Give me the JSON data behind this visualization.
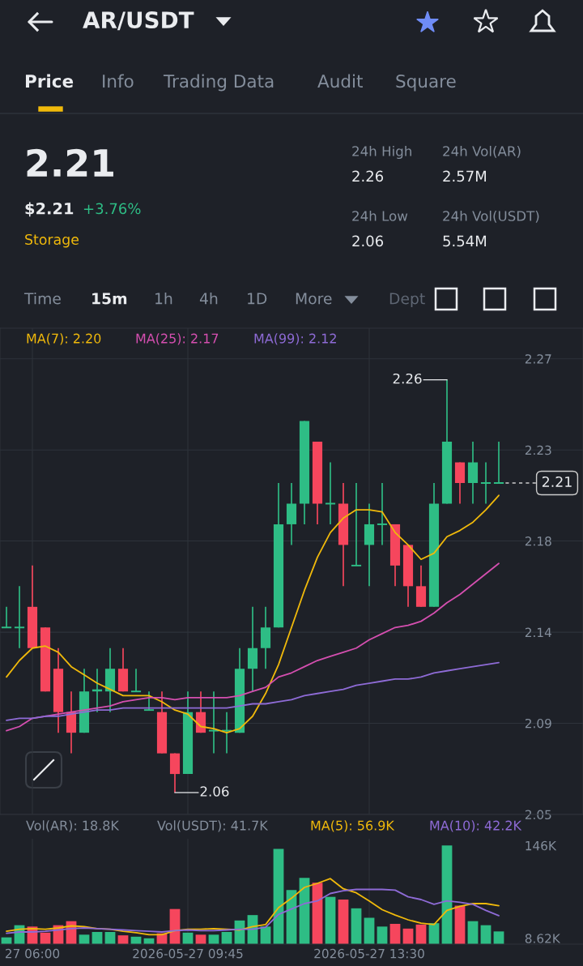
{
  "chart_data": [
    {
      "type": "other",
      "title": "AR/USDT",
      "annotations": [
        "Price",
        "Info",
        "Trading Data",
        "Audit",
        "Square",
        "2.21",
        "$2.21",
        "+3.76%",
        "Storage",
        "24h High",
        "2.26",
        "24h Vol(AR)",
        "2.57M",
        "24h Low",
        "2.06",
        "24h Vol(USDT)",
        "5.54M",
        "Time",
        "15m",
        "1h",
        "4h",
        "1D",
        "More",
        "Dept"
      ]
    },
    {
      "type": "candlestick",
      "categories": [
        null,
        null,
        null,
        null,
        null,
        null,
        null,
        null,
        null,
        null,
        null,
        null,
        null,
        null,
        null,
        null,
        null,
        null,
        null,
        null,
        null,
        null,
        null,
        null,
        null,
        null,
        null,
        null,
        null,
        null,
        null,
        null,
        null,
        null,
        null,
        null,
        null,
        null,
        null
      ],
      "ohlc": [
        [
          2.14,
          2.15,
          2.14,
          2.14
        ],
        [
          2.14,
          2.16,
          2.13,
          2.14
        ],
        [
          2.15,
          2.17,
          2.13,
          2.13
        ],
        [
          2.14,
          2.14,
          2.109,
          2.109
        ],
        [
          2.12,
          2.13,
          2.089,
          2.099
        ],
        [
          2.099,
          2.109,
          2.079,
          2.089
        ],
        [
          2.089,
          2.12,
          2.089,
          2.109
        ],
        [
          2.109,
          2.12,
          2.099,
          2.11
        ],
        [
          2.109,
          2.13,
          2.099,
          2.12
        ],
        [
          2.12,
          2.13,
          2.109,
          2.109
        ],
        [
          2.109,
          2.12,
          2.109,
          2.109
        ],
        [
          2.1,
          2.109,
          2.1,
          2.1
        ],
        [
          2.099,
          2.109,
          2.079,
          2.079
        ],
        [
          2.079,
          2.079,
          2.06,
          2.069
        ],
        [
          2.069,
          2.109,
          2.069,
          2.099
        ],
        [
          2.099,
          2.109,
          2.089,
          2.089
        ],
        [
          2.09,
          2.109,
          2.079,
          2.09
        ],
        [
          2.09,
          2.099,
          2.079,
          2.09
        ],
        [
          2.089,
          2.13,
          2.089,
          2.12
        ],
        [
          2.12,
          2.15,
          2.109,
          2.13
        ],
        [
          2.13,
          2.15,
          2.12,
          2.14
        ],
        [
          2.14,
          2.21,
          2.14,
          2.19
        ],
        [
          2.19,
          2.21,
          2.18,
          2.2
        ],
        [
          2.2,
          2.24,
          2.19,
          2.24
        ],
        [
          2.23,
          2.23,
          2.19,
          2.2
        ],
        [
          2.2,
          2.22,
          2.19,
          2.2
        ],
        [
          2.2,
          2.21,
          2.16,
          2.18
        ],
        [
          2.17,
          2.21,
          2.17,
          2.17
        ],
        [
          2.18,
          2.2,
          2.16,
          2.19
        ],
        [
          2.19,
          2.21,
          2.18,
          2.19
        ],
        [
          2.19,
          2.19,
          2.16,
          2.17
        ],
        [
          2.18,
          2.18,
          2.15,
          2.16
        ],
        [
          2.16,
          2.17,
          2.15,
          2.15
        ],
        [
          2.15,
          2.21,
          2.15,
          2.2
        ],
        [
          2.2,
          2.26,
          2.2,
          2.23
        ],
        [
          2.22,
          2.22,
          2.2,
          2.21
        ],
        [
          2.21,
          2.23,
          2.2,
          2.22
        ],
        [
          2.21,
          2.22,
          2.2,
          2.21
        ],
        [
          2.21,
          2.23,
          2.21,
          2.21
        ]
      ],
      "colors": [
        "#2ebd85",
        "#2ebd85",
        "#f6465d",
        "#f6465d",
        "#f6465d",
        "#f6465d",
        "#2ebd85",
        "#2ebd85",
        "#2ebd85",
        "#f6465d",
        "#2ebd85",
        "#2ebd85",
        "#f6465d",
        "#f6465d",
        "#2ebd85",
        "#f6465d",
        "#2ebd85",
        "#2ebd85",
        "#2ebd85",
        "#2ebd85",
        "#2ebd85",
        "#2ebd85",
        "#2ebd85",
        "#2ebd85",
        "#f6465d",
        "#2ebd85",
        "#f6465d",
        "#2ebd85",
        "#2ebd85",
        "#2ebd85",
        "#f6465d",
        "#f6465d",
        "#f6465d",
        "#2ebd85",
        "#2ebd85",
        "#f6465d",
        "#2ebd85",
        "#2ebd85",
        "#2ebd85"
      ],
      "series": [
        {
          "name": "MA(7): 2.20",
          "type": "line",
          "color": "#f0b90b",
          "values": [
            2.116,
            2.124,
            2.13,
            2.131,
            2.128,
            2.121,
            2.117,
            2.113,
            2.11,
            2.107,
            2.107,
            2.107,
            2.104,
            2.1,
            2.098,
            2.092,
            2.091,
            2.089,
            2.091,
            2.097,
            2.108,
            2.122,
            2.14,
            2.158,
            2.174,
            2.186,
            2.193,
            2.197,
            2.197,
            2.196,
            2.186,
            2.18,
            2.173,
            2.176,
            2.184,
            2.187,
            2.191,
            2.197,
            2.204
          ]
        },
        {
          "name": "MA(25): 2.17",
          "type": "line",
          "color": "#d54fb0",
          "values": [
            2.09,
            2.092,
            2.096,
            2.097,
            2.098,
            2.099,
            2.1,
            2.101,
            2.102,
            2.104,
            2.105,
            2.106,
            2.106,
            2.105,
            2.106,
            2.106,
            2.106,
            2.106,
            2.107,
            2.109,
            2.111,
            2.116,
            2.118,
            2.121,
            2.124,
            2.126,
            2.128,
            2.13,
            2.134,
            2.137,
            2.14,
            2.141,
            2.143,
            2.147,
            2.152,
            2.156,
            2.161,
            2.166,
            2.171
          ]
        },
        {
          "name": "MA(99): 2.12",
          "type": "line",
          "color": "#8e6bd6",
          "values": [
            2.095,
            2.096,
            2.096,
            2.097,
            2.097,
            2.098,
            2.099,
            2.1,
            2.1,
            2.101,
            2.101,
            2.101,
            2.101,
            2.101,
            2.101,
            2.101,
            2.101,
            2.101,
            2.102,
            2.103,
            2.103,
            2.104,
            2.105,
            2.107,
            2.108,
            2.109,
            2.11,
            2.112,
            2.113,
            2.114,
            2.115,
            2.115,
            2.116,
            2.118,
            2.119,
            2.12,
            2.121,
            2.122,
            2.123
          ]
        }
      ],
      "ylim": [
        2.0494,
        2.285
      ],
      "yticks": [
        {
          "value": 2.2702,
          "label": "2.27"
        },
        {
          "value": 2.226,
          "label": "2.23"
        },
        {
          "value": 2.1819,
          "label": "2.18"
        },
        {
          "value": 2.1377,
          "label": "2.14"
        },
        {
          "value": 2.0936,
          "label": "2.09"
        },
        {
          "value": 2.0494,
          "label": "2.05"
        }
      ],
      "grid": true,
      "tick_labels": "y",
      "annotations": [
        "2.26",
        "2.06"
      ],
      "ref_lines": [
        {
          "axis": "y",
          "value": 2.21,
          "label": "2.21",
          "line_style": "dashed",
          "color": "#cccccc"
        }
      ]
    },
    {
      "type": "bar",
      "categories": [
        null,
        null,
        "27 06:00",
        null,
        null,
        null,
        null,
        null,
        null,
        null,
        null,
        null,
        null,
        null,
        "2026-05-27 09:45",
        null,
        null,
        null,
        null,
        null,
        null,
        null,
        null,
        null,
        null,
        null,
        null,
        null,
        "2026-05-27 13:30",
        null,
        null,
        null,
        null,
        null,
        null,
        null,
        null,
        null,
        null
      ],
      "values": [
        10,
        28,
        26,
        17,
        28,
        34,
        14,
        18,
        18,
        13,
        11,
        8.62,
        16,
        52,
        17,
        14,
        14,
        18,
        35,
        43,
        26,
        141,
        80,
        98,
        91,
        70,
        66,
        53,
        39,
        26,
        30,
        23,
        29,
        31,
        146,
        57,
        34,
        28,
        18.8
      ],
      "colors": [
        "#2ebd85",
        "#2ebd85",
        "#f6465d",
        "#f6465d",
        "#f6465d",
        "#f6465d",
        "#2ebd85",
        "#2ebd85",
        "#2ebd85",
        "#f6465d",
        "#2ebd85",
        "#2ebd85",
        "#f6465d",
        "#f6465d",
        "#2ebd85",
        "#f6465d",
        "#2ebd85",
        "#2ebd85",
        "#2ebd85",
        "#2ebd85",
        "#2ebd85",
        "#2ebd85",
        "#2ebd85",
        "#2ebd85",
        "#f6465d",
        "#2ebd85",
        "#f6465d",
        "#2ebd85",
        "#2ebd85",
        "#2ebd85",
        "#f6465d",
        "#f6465d",
        "#f6465d",
        "#2ebd85",
        "#2ebd85",
        "#f6465d",
        "#2ebd85",
        "#2ebd85",
        "#2ebd85"
      ],
      "series": [
        {
          "name": "MA(5): 56.9K",
          "type": "line",
          "color": "#f0b90b",
          "values": [
            19,
            22,
            23,
            22,
            24,
            27,
            26,
            23,
            22,
            19,
            17,
            14,
            14,
            20,
            22,
            22,
            23,
            22,
            21,
            26,
            29,
            54,
            68,
            84,
            90,
            97,
            82,
            76,
            64,
            51,
            43,
            36,
            31,
            29,
            50,
            56,
            60,
            60,
            56.9
          ]
        },
        {
          "name": "MA(10): 42.2K",
          "type": "line",
          "color": "#8e6bd6",
          "values": [
            16,
            18,
            18,
            19,
            21,
            23,
            24,
            23,
            22,
            21,
            20,
            19,
            18,
            20,
            21,
            20,
            20,
            21,
            22,
            22,
            25,
            44,
            52,
            60,
            64,
            75,
            79,
            81,
            81,
            81,
            80,
            70,
            66,
            59,
            64,
            62,
            59,
            50,
            42.2
          ]
        }
      ],
      "annotations": [
        "Vol(AR): 18.8K",
        "Vol(USDT): 41.7K"
      ],
      "ylim": [
        0,
        156
      ],
      "yticks": [
        {
          "value": 146,
          "label": "146K"
        },
        {
          "value": 8.62,
          "label": "8.62K"
        }
      ],
      "grid": "x"
    }
  ]
}
